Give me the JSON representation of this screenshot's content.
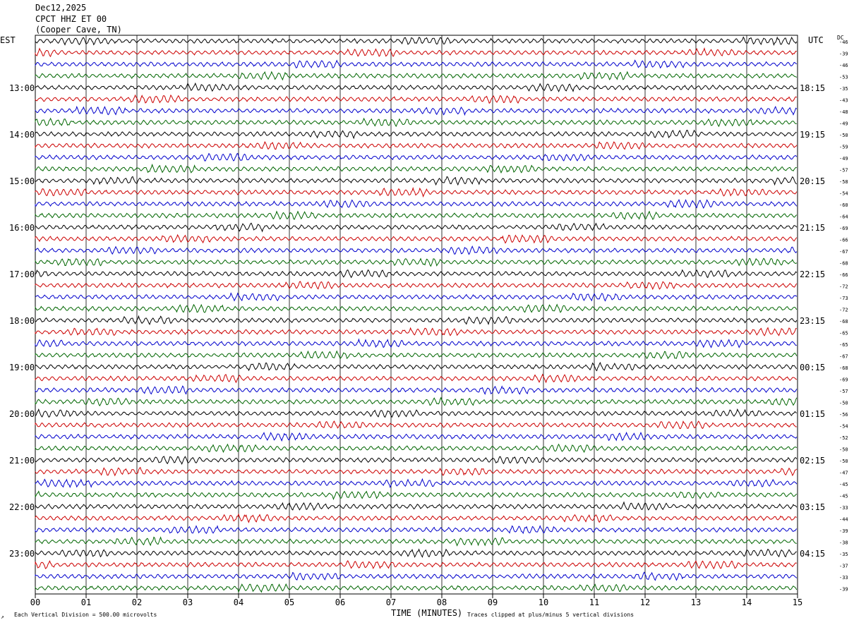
{
  "header": {
    "date": "Dec12,2025",
    "station": "CPCT HHZ ET 00",
    "location": "(Cooper Cave, TN)"
  },
  "left_tz": "EST",
  "right_tz": "UTC",
  "dc_label": "DC",
  "footer": {
    "scale": "Each Vertical Division =  500.00 microvolts",
    "xlabel": "TIME (MINUTES)",
    "clip": "Traces clipped at plus/minus 5 vertical divisions",
    "corner": "↗"
  },
  "colors": {
    "trace": [
      "#000000",
      "#cc0000",
      "#0000cc",
      "#006600"
    ],
    "grid": "#000000"
  },
  "chart_data": {
    "type": "line",
    "xlabel": "TIME (MINUTES)",
    "xlim": [
      0,
      15
    ],
    "x_ticks": [
      "00",
      "01",
      "02",
      "03",
      "04",
      "05",
      "06",
      "07",
      "08",
      "09",
      "10",
      "11",
      "12",
      "13",
      "14",
      "15"
    ],
    "left_hours": [
      "13:00",
      "14:00",
      "15:00",
      "16:00",
      "17:00",
      "18:00",
      "19:00",
      "20:00",
      "21:00",
      "22:00",
      "23:00"
    ],
    "right_hours": [
      "18:15",
      "19:15",
      "20:15",
      "21:15",
      "22:15",
      "23:15",
      "00:15",
      "01:15",
      "02:15",
      "03:15",
      "04:15"
    ],
    "dc_offsets": [
      -46,
      -39,
      -46,
      -53,
      -35,
      -43,
      -48,
      -49,
      -50,
      -59,
      -49,
      -57,
      -58,
      -54,
      -60,
      -64,
      -69,
      -66,
      -67,
      -68,
      -66,
      -72,
      -73,
      -72,
      -68,
      -65,
      -65,
      -67,
      -68,
      -69,
      -57,
      -50,
      -56,
      -54,
      -52,
      -50,
      -50,
      -47,
      -45,
      -45,
      -33,
      -44,
      -39,
      -38,
      -35,
      -37,
      -33,
      -39
    ],
    "trace_count": 48,
    "traces_per_hour": 4
  }
}
